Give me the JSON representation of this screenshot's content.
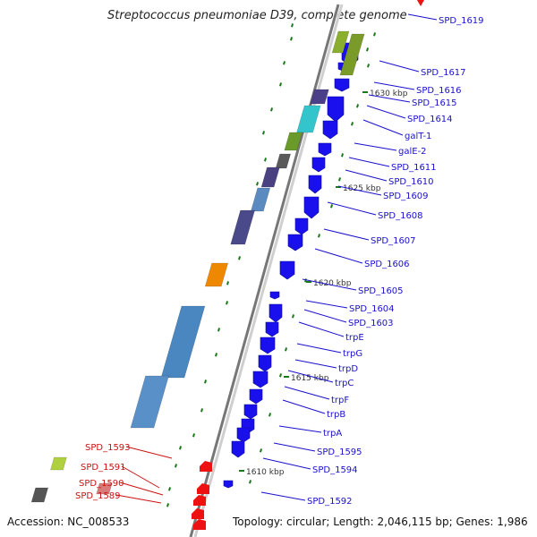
{
  "title": "Streptococcus pneumoniae D39, complete genome",
  "accession": "Accession: NC_008533",
  "topology": "Topology: circular; Length: 2,046,115 bp; Genes: 1,986",
  "colors": {
    "forward_arrow": "#1a10ee",
    "reverse_arrow": "#ee1111",
    "label_blue": "#1a10cc",
    "label_red": "#cc1111",
    "tick_green": "#1a7a1a",
    "backbone_dark": "#777777",
    "backbone_light": "#cfcfcf"
  },
  "kbp_marks": [
    "1630 kbp",
    "1625 kbp",
    "1620 kbp",
    "1615 kbp",
    "1610 kbp"
  ],
  "blue_genes": [
    "SPD_1619",
    "SPD_1617",
    "SPD_1616",
    "SPD_1615",
    "SPD_1614",
    "galT-1",
    "galE-2",
    "SPD_1611",
    "SPD_1610",
    "SPD_1609",
    "SPD_1608",
    "SPD_1607",
    "SPD_1606",
    "SPD_1605",
    "SPD_1604",
    "SPD_1603",
    "trpE",
    "trpG",
    "trpD",
    "trpC",
    "trpF",
    "trpB",
    "trpA",
    "SPD_1595",
    "SPD_1594",
    "SPD_1592"
  ],
  "red_genes": [
    "SPD_1593",
    "SPD_1591",
    "SPD_1590",
    "SPD_1589"
  ],
  "cog_colors": [
    "#7a9a2a",
    "#8aae2e",
    "#4b3f8a",
    "#33c4cc",
    "#6a9a2a",
    "#5a5a5a",
    "#4a4280",
    "#5a8ac0",
    "#4a4a8a",
    "#ee8800",
    "#4a86c0",
    "#5a90c8",
    "#d87a7a",
    "#b0d040",
    "#555555"
  ]
}
